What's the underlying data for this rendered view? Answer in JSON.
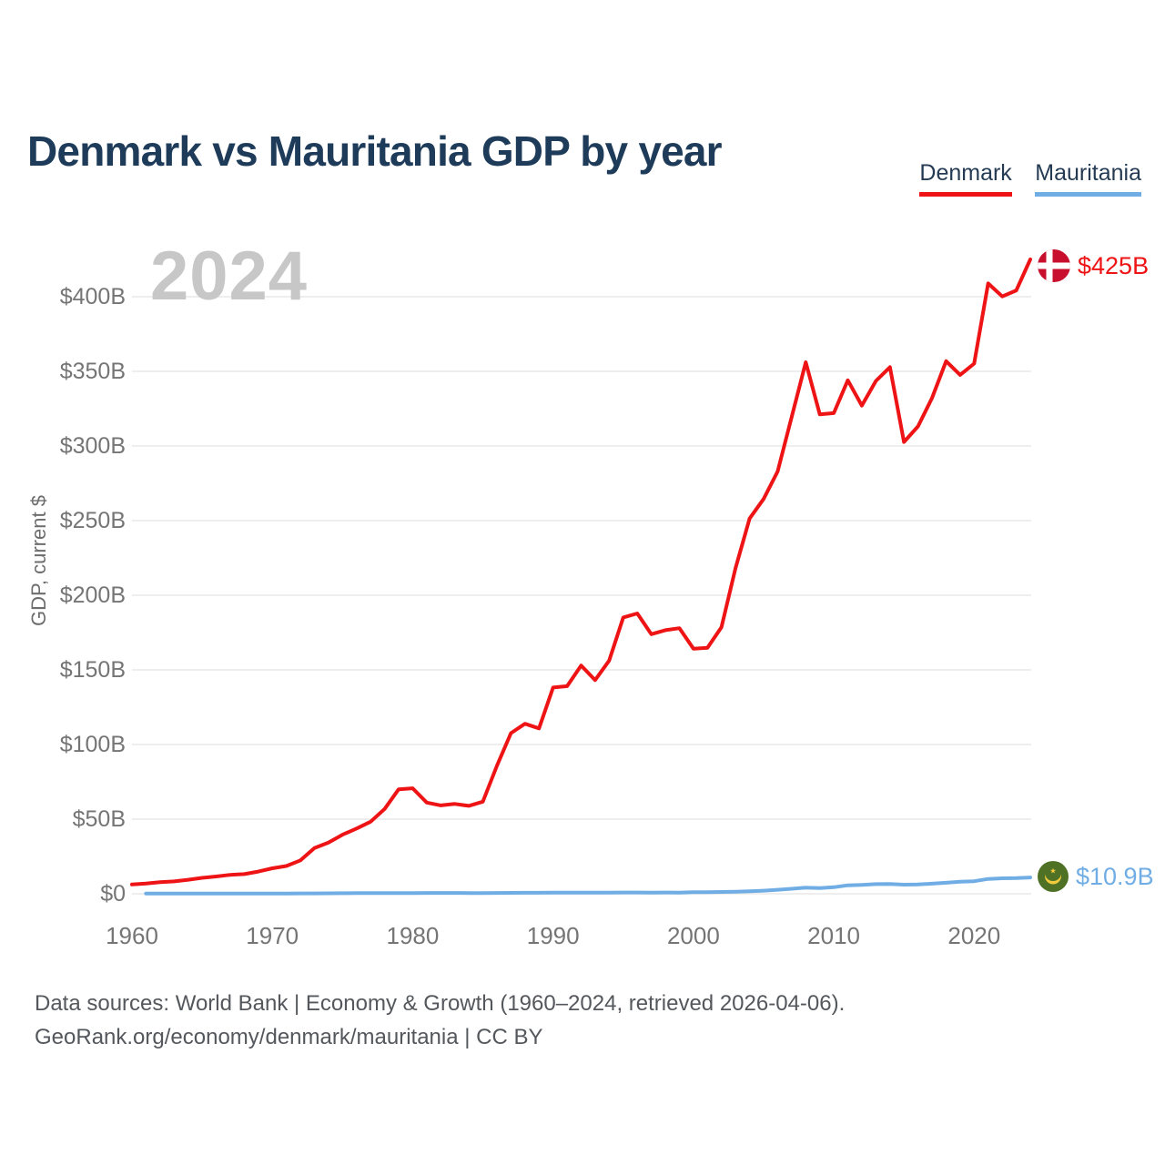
{
  "title": "Denmark vs Mauritania GDP by year",
  "watermark": "2024",
  "footer": {
    "line1": "Data sources: World Bank | Economy & Growth (1960–2024, retrieved 2026-04-06).",
    "line2": "GeoRank.org/economy/denmark/mauritania | CC BY"
  },
  "chart_data": {
    "type": "line",
    "title": "Denmark vs Mauritania GDP by year",
    "xlabel": "",
    "ylabel": "GDP, current $",
    "unit": "billion USD",
    "grid": "horizontal",
    "legend_position": "top-right",
    "xlim": [
      1960,
      2024
    ],
    "ylim": [
      0,
      430
    ],
    "x_ticks": [
      {
        "value": 1960,
        "label": "1960"
      },
      {
        "value": 1970,
        "label": "1970"
      },
      {
        "value": 1980,
        "label": "1980"
      },
      {
        "value": 1990,
        "label": "1990"
      },
      {
        "value": 2000,
        "label": "2000"
      },
      {
        "value": 2010,
        "label": "2010"
      },
      {
        "value": 2020,
        "label": "2020"
      }
    ],
    "y_ticks": [
      {
        "value": 0,
        "label": "$0"
      },
      {
        "value": 50,
        "label": "$50B"
      },
      {
        "value": 100,
        "label": "$100B"
      },
      {
        "value": 150,
        "label": "$150B"
      },
      {
        "value": 200,
        "label": "$200B"
      },
      {
        "value": 250,
        "label": "$250B"
      },
      {
        "value": 300,
        "label": "$300B"
      },
      {
        "value": 350,
        "label": "$350B"
      },
      {
        "value": 400,
        "label": "$400B"
      }
    ],
    "x": [
      1960,
      1961,
      1962,
      1963,
      1964,
      1965,
      1966,
      1967,
      1968,
      1969,
      1970,
      1971,
      1972,
      1973,
      1974,
      1975,
      1976,
      1977,
      1978,
      1979,
      1980,
      1981,
      1982,
      1983,
      1984,
      1985,
      1986,
      1987,
      1988,
      1989,
      1990,
      1991,
      1992,
      1993,
      1994,
      1995,
      1996,
      1997,
      1998,
      1999,
      2000,
      2001,
      2002,
      2003,
      2004,
      2005,
      2006,
      2007,
      2008,
      2009,
      2010,
      2011,
      2012,
      2013,
      2014,
      2015,
      2016,
      2017,
      2018,
      2019,
      2020,
      2021,
      2022,
      2023,
      2024
    ],
    "series": [
      {
        "name": "Denmark",
        "color": "#ee1314",
        "end_label": "$425B",
        "flag": "denmark",
        "values": [
          6.2,
          6.9,
          7.8,
          8.3,
          9.4,
          10.7,
          11.6,
          12.7,
          13.2,
          14.9,
          17.1,
          18.6,
          22.4,
          30.7,
          34.3,
          39.6,
          43.7,
          48.3,
          56.8,
          70.0,
          70.7,
          61.1,
          59.2,
          60.2,
          58.9,
          61.7,
          85.8,
          107.6,
          113.9,
          110.8,
          138.2,
          139.1,
          152.9,
          143.2,
          156.2,
          185.1,
          187.8,
          173.9,
          176.6,
          177.9,
          164.2,
          164.8,
          178.6,
          218.1,
          251.4,
          264.5,
          282.9,
          319.4,
          356.1,
          321.2,
          322.0,
          344.0,
          327.1,
          343.6,
          352.8,
          302.7,
          313.1,
          332.1,
          356.8,
          347.6,
          355.2,
          408.9,
          400.2,
          404.2,
          425.0
        ]
      },
      {
        "name": "Mauritania",
        "color": "#70ade4",
        "end_label": "$10.9B",
        "flag": "mauritania",
        "values": [
          null,
          0.1,
          0.11,
          0.12,
          0.14,
          0.15,
          0.17,
          0.17,
          0.18,
          0.18,
          0.18,
          0.2,
          0.22,
          0.25,
          0.33,
          0.36,
          0.4,
          0.42,
          0.42,
          0.46,
          0.51,
          0.55,
          0.54,
          0.54,
          0.5,
          0.48,
          0.56,
          0.63,
          0.66,
          0.68,
          0.72,
          0.76,
          0.79,
          0.74,
          0.76,
          0.84,
          0.85,
          0.82,
          0.83,
          0.82,
          1.08,
          1.12,
          1.21,
          1.39,
          1.62,
          2.06,
          2.7,
          3.36,
          4.07,
          3.79,
          4.37,
          5.67,
          5.99,
          6.45,
          6.52,
          6.1,
          6.26,
          6.74,
          7.35,
          8.06,
          8.41,
          9.91,
          10.36,
          10.48,
          10.9
        ]
      }
    ]
  },
  "colors": {
    "title": "#1e3c5a",
    "legend_text": "#243b53",
    "axis_text": "#757575",
    "grid": "#e8e8e8",
    "watermark": "#c7c7c7",
    "footer_text": "#54575c",
    "denmark_flag_red": "#c8102e",
    "mauritania_flag_green": "#4e7125",
    "mauritania_flag_gold": "#f0c93c"
  }
}
